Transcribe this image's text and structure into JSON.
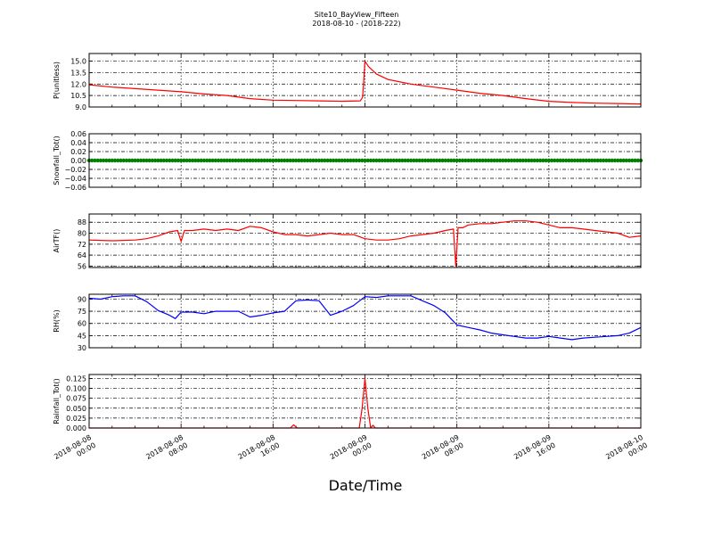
{
  "figure": {
    "title_line1": "Site10_BayView_Fifteen",
    "title_line2": "2018-08-10 - (2018-222)",
    "xlabel": "Date/Time",
    "x_tick_labels": [
      [
        "2018-08-08",
        "00:00"
      ],
      [
        "2018-08-08",
        "08:00"
      ],
      [
        "2018-08-08",
        "16:00"
      ],
      [
        "2018-08-09",
        "00:00"
      ],
      [
        "2018-08-09",
        "08:00"
      ],
      [
        "2018-08-09",
        "16:00"
      ],
      [
        "2018-08-10",
        "00:00"
      ]
    ]
  },
  "chart_data": [
    {
      "type": "line",
      "ylabel": "P(unitless)",
      "ylim": [
        9.0,
        16.0
      ],
      "yticks": [
        "9.0",
        "10.5",
        "12.0",
        "13.5",
        "15.0"
      ],
      "color": "#ff0000",
      "grid": true,
      "x_hours": [
        0,
        2,
        4,
        6,
        8,
        10,
        12,
        14,
        16,
        18,
        20,
        22,
        23.6,
        23.8,
        24,
        24.3,
        25,
        26,
        28,
        30,
        32,
        34,
        36,
        38,
        40,
        42,
        44,
        46,
        48
      ],
      "values": [
        11.9,
        11.6,
        11.4,
        11.2,
        11.0,
        10.7,
        10.5,
        10.1,
        9.9,
        9.85,
        9.8,
        9.75,
        9.8,
        10.3,
        15.0,
        14.3,
        13.3,
        12.6,
        12.0,
        11.6,
        11.2,
        10.8,
        10.5,
        10.1,
        9.75,
        9.6,
        9.5,
        9.45,
        9.4
      ]
    },
    {
      "type": "scatter",
      "ylabel": "Snowfall_Tot()",
      "ylim": [
        -0.06,
        0.06
      ],
      "yticks": [
        "−0.06",
        "−0.04",
        "−0.02",
        "0.00",
        "0.02",
        "0.04",
        "0.06"
      ],
      "color": "#008000",
      "grid": true,
      "value": 0.0
    },
    {
      "type": "line",
      "ylabel": "AirTF()",
      "ylim": [
        55,
        94
      ],
      "yticks": [
        "56",
        "64",
        "72",
        "80",
        "88"
      ],
      "color": "#ff0000",
      "grid": true,
      "x_hours": [
        0,
        2,
        4,
        5,
        6,
        7,
        7.7,
        8,
        8.3,
        9,
        10,
        11,
        12,
        13,
        14,
        15,
        16,
        17,
        18,
        19,
        20,
        21,
        22,
        23,
        24,
        25,
        26,
        27,
        28,
        29,
        30,
        31,
        31.7,
        31.9,
        32.1,
        32.5,
        33,
        34,
        35,
        36,
        37,
        38,
        39,
        40,
        41,
        42,
        43,
        44,
        45,
        46,
        47,
        48
      ],
      "values": [
        75,
        74.5,
        75,
        76,
        78,
        81,
        82,
        74,
        82,
        82,
        83,
        82,
        83,
        82,
        85,
        84,
        81,
        79,
        79,
        78,
        79,
        80,
        79,
        79,
        76,
        75,
        75,
        76,
        78,
        79,
        80,
        82,
        83,
        56,
        84,
        84,
        86,
        87,
        87,
        88,
        89,
        89,
        88,
        86,
        84,
        84,
        83,
        82,
        81,
        80,
        77,
        78
      ]
    },
    {
      "type": "line",
      "ylabel": "RH(%)",
      "ylim": [
        30,
        96
      ],
      "yticks": [
        "30",
        "45",
        "60",
        "75",
        "90"
      ],
      "color": "#0000ff",
      "grid": true,
      "x_hours": [
        0,
        1,
        2,
        3,
        4,
        5,
        6,
        7,
        7.5,
        8,
        9,
        10,
        11,
        12,
        13,
        14,
        15,
        16,
        17,
        18,
        19,
        20,
        21,
        22,
        23,
        24,
        25,
        26,
        27,
        28,
        29,
        30,
        31,
        32,
        33,
        34,
        35,
        36,
        37,
        38,
        39,
        40,
        41,
        42,
        43,
        44,
        45,
        46,
        47,
        48
      ],
      "values": [
        91,
        90,
        93,
        94,
        94,
        87,
        76,
        70,
        66,
        74,
        74,
        72,
        75,
        75,
        75,
        68,
        70,
        73,
        75,
        88,
        89,
        88,
        70,
        75,
        82,
        93,
        92,
        94,
        94,
        94,
        88,
        82,
        73,
        58,
        55,
        52,
        48,
        46,
        44,
        42,
        42,
        44,
        42,
        40,
        42,
        43,
        44,
        45,
        48,
        55
      ]
    },
    {
      "type": "line",
      "ylabel": "Rainfall_Tot()",
      "ylim": [
        0,
        0.135
      ],
      "yticks": [
        "0.000",
        "0.025",
        "0.050",
        "0.075",
        "0.100",
        "0.125"
      ],
      "color": "#ff0000",
      "grid": true,
      "x_hours": [
        0,
        17.5,
        17.8,
        18.1,
        18.4,
        23.5,
        23.75,
        24,
        24.25,
        24.5,
        24.7,
        24.9,
        25.2,
        48
      ],
      "values": [
        0,
        0,
        0.008,
        0,
        0,
        0,
        0.05,
        0.125,
        0.05,
        0,
        0.007,
        0,
        0,
        0
      ]
    }
  ]
}
